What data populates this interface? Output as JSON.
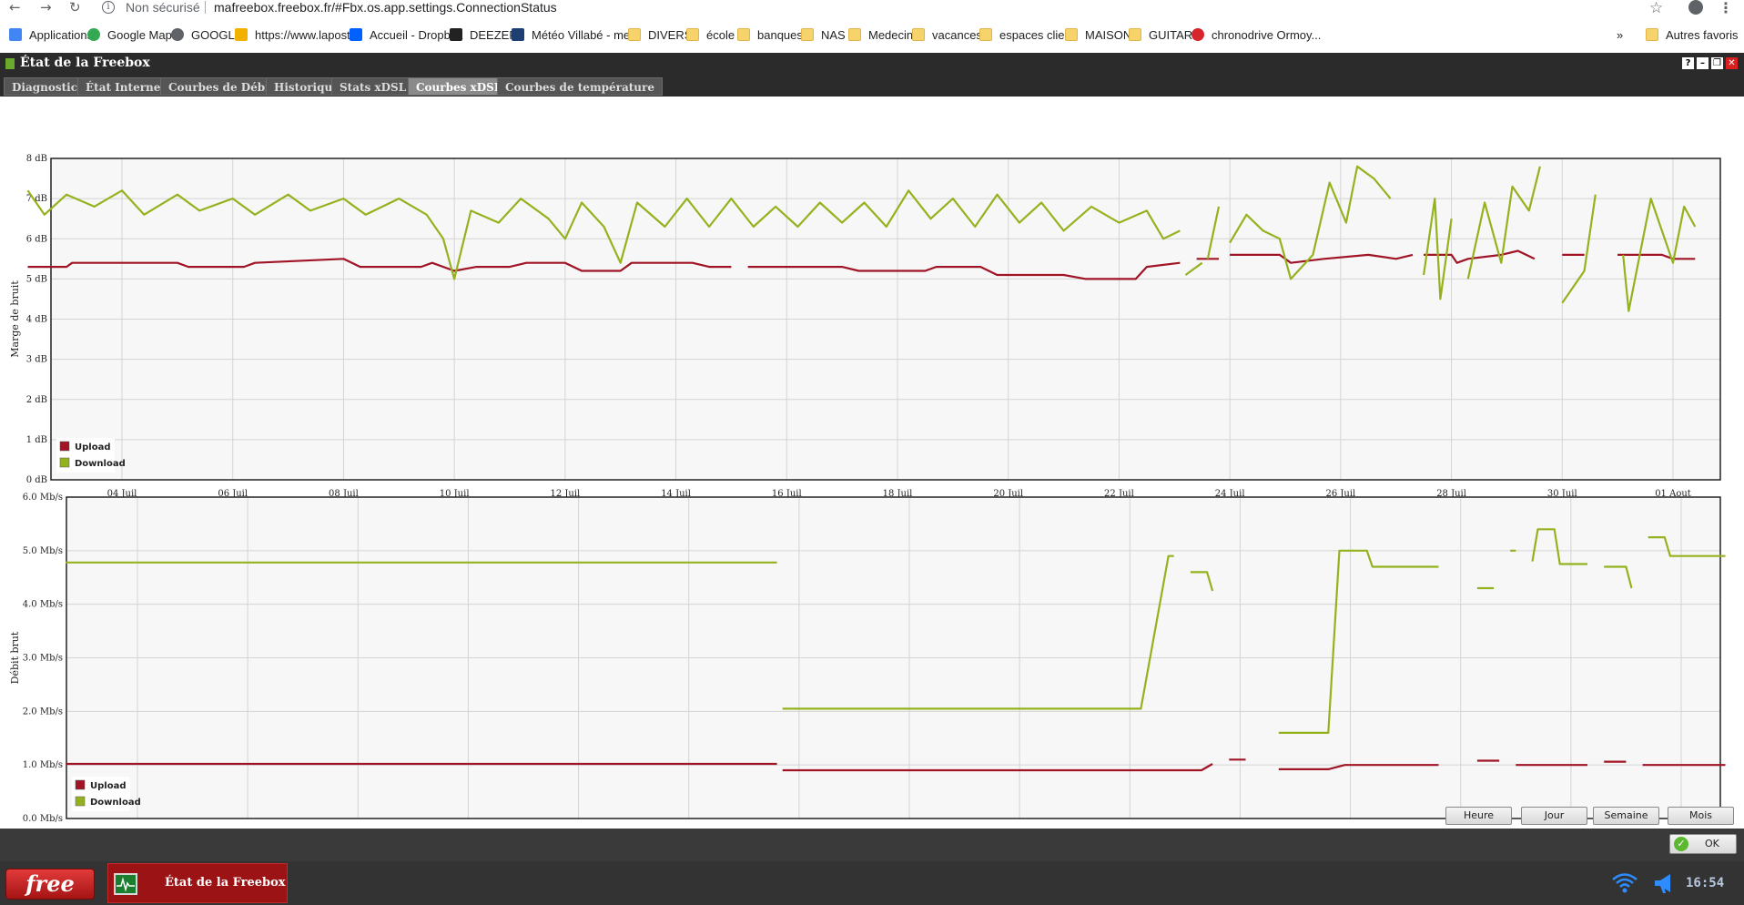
{
  "browser": {
    "security": "Non sécurisé",
    "url": "mafreebox.freebox.fr/#Fbx.os.app.settings.ConnectionStatus",
    "bookmarks": [
      {
        "label": "Applications",
        "icon": "apps-grid-icon",
        "color": "#4285f4"
      },
      {
        "label": "Google Maps",
        "icon": "maps-pin-icon",
        "color": "#34a853"
      },
      {
        "label": "GOOGLE",
        "icon": "globe-icon",
        "color": "#5f6368"
      },
      {
        "label": "https://www.lapost...",
        "icon": "mail-icon",
        "color": "#f2b100"
      },
      {
        "label": "Accueil - Dropbox",
        "icon": "dropbox-icon",
        "color": "#0061ff"
      },
      {
        "label": "DEEZER",
        "icon": "deezer-icon",
        "color": "#222222"
      },
      {
        "label": "Météo Villabé - me...",
        "icon": "meteo-icon",
        "color": "#1d3f72"
      },
      {
        "label": "DIVERS",
        "icon": "folder-icon"
      },
      {
        "label": "école",
        "icon": "folder-icon"
      },
      {
        "label": "banques",
        "icon": "folder-icon"
      },
      {
        "label": "NAS",
        "icon": "folder-icon"
      },
      {
        "label": "Medecin",
        "icon": "folder-icon"
      },
      {
        "label": "vacances",
        "icon": "folder-icon"
      },
      {
        "label": "espaces client",
        "icon": "folder-icon"
      },
      {
        "label": "MAISON",
        "icon": "folder-icon"
      },
      {
        "label": "GUITARE",
        "icon": "folder-icon"
      },
      {
        "label": "chronodrive Ormoy...",
        "icon": "chronodrive-icon",
        "color": "#d7262b"
      }
    ],
    "more_glyph": "»",
    "other_favorites": "Autres favoris"
  },
  "window": {
    "title": "État de la Freebox",
    "tabs": [
      {
        "label": "Diagnostic",
        "active": false
      },
      {
        "label": "État Internet",
        "active": false
      },
      {
        "label": "Courbes de Débit",
        "active": false
      },
      {
        "label": "Historique",
        "active": false
      },
      {
        "label": "Stats xDSL",
        "active": false
      },
      {
        "label": "Courbes xDSL",
        "active": true
      },
      {
        "label": "Courbes de température",
        "active": false
      }
    ],
    "range_buttons": [
      "Heure",
      "Jour",
      "Semaine",
      "Mois"
    ],
    "ok_label": "OK"
  },
  "taskbar": {
    "logo": "free",
    "app_label": "État de la Freebox",
    "clock": "16:54"
  },
  "colors": {
    "upload": "#a01425",
    "download": "#94b21e"
  },
  "chart_data": [
    {
      "type": "line",
      "ylabel": "Marge de bruit",
      "yticks": [
        "0 dB",
        "1 dB",
        "2 dB",
        "3 dB",
        "4 dB",
        "5 dB",
        "6 dB",
        "7 dB",
        "8 dB"
      ],
      "ylim": [
        0,
        8
      ],
      "xticks": [
        "04 Juil",
        "06 Juil",
        "08 Juil",
        "10 Juil",
        "12 Juil",
        "14 Juil",
        "16 Juil",
        "18 Juil",
        "20 Juil",
        "22 Juil",
        "24 Juil",
        "26 Juil",
        "28 Juil",
        "30 Juil",
        "01 Aout"
      ],
      "xlim": [
        2.3,
        32.7
      ],
      "legend": [
        "Upload",
        "Download"
      ],
      "legend_position": "bottom-left",
      "series": [
        {
          "name": "Upload",
          "segments": [
            [
              [
                2.3,
                5.3
              ],
              [
                3.0,
                5.3
              ],
              [
                3.1,
                5.4
              ],
              [
                5.0,
                5.4
              ],
              [
                5.2,
                5.3
              ],
              [
                6.2,
                5.3
              ],
              [
                6.4,
                5.4
              ],
              [
                8.0,
                5.5
              ],
              [
                8.3,
                5.3
              ],
              [
                9.4,
                5.3
              ],
              [
                9.6,
                5.4
              ],
              [
                10.0,
                5.2
              ],
              [
                10.4,
                5.3
              ],
              [
                11.0,
                5.3
              ],
              [
                11.3,
                5.4
              ],
              [
                12.0,
                5.4
              ],
              [
                12.3,
                5.2
              ],
              [
                13.0,
                5.2
              ],
              [
                13.2,
                5.4
              ],
              [
                14.3,
                5.4
              ],
              [
                14.6,
                5.3
              ],
              [
                15.0,
                5.3
              ]
            ],
            [
              [
                15.3,
                5.3
              ],
              [
                17.0,
                5.3
              ],
              [
                17.3,
                5.2
              ],
              [
                18.5,
                5.2
              ],
              [
                18.7,
                5.3
              ],
              [
                19.5,
                5.3
              ],
              [
                19.8,
                5.1
              ],
              [
                21.0,
                5.1
              ],
              [
                21.4,
                5.0
              ],
              [
                22.3,
                5.0
              ],
              [
                22.5,
                5.3
              ],
              [
                23.1,
                5.4
              ]
            ],
            [
              [
                23.4,
                5.5
              ],
              [
                23.8,
                5.5
              ]
            ],
            [
              [
                24.0,
                5.6
              ],
              [
                24.9,
                5.6
              ],
              [
                25.1,
                5.4
              ],
              [
                25.7,
                5.5
              ],
              [
                26.5,
                5.6
              ],
              [
                27.0,
                5.5
              ],
              [
                27.3,
                5.6
              ]
            ],
            [
              [
                27.5,
                5.6
              ],
              [
                28.0,
                5.6
              ],
              [
                28.1,
                5.4
              ],
              [
                28.3,
                5.5
              ],
              [
                28.9,
                5.6
              ],
              [
                29.2,
                5.7
              ],
              [
                29.5,
                5.5
              ]
            ],
            [
              [
                30.0,
                5.6
              ],
              [
                30.4,
                5.6
              ]
            ],
            [
              [
                31.0,
                5.6
              ],
              [
                31.8,
                5.6
              ],
              [
                32.0,
                5.5
              ],
              [
                32.4,
                5.5
              ]
            ]
          ]
        },
        {
          "name": "Download",
          "segments": [
            [
              [
                2.3,
                7.2
              ],
              [
                2.6,
                6.6
              ],
              [
                3.0,
                7.1
              ],
              [
                3.5,
                6.8
              ],
              [
                4.0,
                7.2
              ],
              [
                4.4,
                6.6
              ],
              [
                5.0,
                7.1
              ],
              [
                5.4,
                6.7
              ],
              [
                6.0,
                7.0
              ],
              [
                6.4,
                6.6
              ],
              [
                7.0,
                7.1
              ],
              [
                7.4,
                6.7
              ],
              [
                8.0,
                7.0
              ],
              [
                8.4,
                6.6
              ],
              [
                9.0,
                7.0
              ],
              [
                9.5,
                6.6
              ],
              [
                9.8,
                6.0
              ],
              [
                10.0,
                5.0
              ],
              [
                10.3,
                6.7
              ],
              [
                10.8,
                6.4
              ],
              [
                11.2,
                7.0
              ],
              [
                11.7,
                6.5
              ],
              [
                12.0,
                6.0
              ],
              [
                12.3,
                6.9
              ],
              [
                12.7,
                6.3
              ],
              [
                13.0,
                5.4
              ],
              [
                13.3,
                6.9
              ],
              [
                13.8,
                6.3
              ],
              [
                14.2,
                7.0
              ],
              [
                14.6,
                6.3
              ],
              [
                15.0,
                7.0
              ],
              [
                15.4,
                6.3
              ],
              [
                15.8,
                6.8
              ],
              [
                16.2,
                6.3
              ],
              [
                16.6,
                6.9
              ],
              [
                17.0,
                6.4
              ],
              [
                17.4,
                6.9
              ],
              [
                17.8,
                6.3
              ],
              [
                18.2,
                7.2
              ],
              [
                18.6,
                6.5
              ],
              [
                19.0,
                7.0
              ],
              [
                19.4,
                6.3
              ],
              [
                19.8,
                7.1
              ],
              [
                20.2,
                6.4
              ],
              [
                20.6,
                6.9
              ],
              [
                21.0,
                6.2
              ],
              [
                21.5,
                6.8
              ],
              [
                22.0,
                6.4
              ],
              [
                22.5,
                6.7
              ],
              [
                22.8,
                6.0
              ],
              [
                23.1,
                6.2
              ]
            ],
            [
              [
                23.2,
                5.1
              ],
              [
                23.5,
                5.4
              ]
            ],
            [
              [
                23.6,
                5.5
              ],
              [
                23.8,
                6.8
              ]
            ],
            [
              [
                24.0,
                5.9
              ],
              [
                24.3,
                6.6
              ],
              [
                24.6,
                6.2
              ],
              [
                24.9,
                6.0
              ],
              [
                25.1,
                5.0
              ],
              [
                25.5,
                5.6
              ],
              [
                25.8,
                7.4
              ],
              [
                26.1,
                6.4
              ],
              [
                26.3,
                7.8
              ],
              [
                26.6,
                7.5
              ],
              [
                26.9,
                7.0
              ]
            ],
            [
              [
                27.5,
                5.1
              ],
              [
                27.7,
                7.0
              ],
              [
                27.8,
                4.5
              ],
              [
                28.0,
                6.5
              ]
            ],
            [
              [
                28.3,
                5.0
              ],
              [
                28.6,
                6.9
              ],
              [
                28.9,
                5.4
              ],
              [
                29.1,
                7.3
              ],
              [
                29.4,
                6.7
              ],
              [
                29.6,
                7.8
              ]
            ],
            [
              [
                30.0,
                4.4
              ],
              [
                30.4,
                5.2
              ],
              [
                30.6,
                7.1
              ]
            ],
            [
              [
                31.1,
                5.6
              ],
              [
                31.2,
                4.2
              ],
              [
                31.6,
                7.0
              ],
              [
                32.0,
                5.4
              ],
              [
                32.2,
                6.8
              ],
              [
                32.4,
                6.3
              ]
            ]
          ]
        }
      ]
    },
    {
      "type": "line",
      "ylabel": "Débit brut",
      "yticks": [
        "0.0 Mb/s",
        "1.0 Mb/s",
        "2.0 Mb/s",
        "3.0 Mb/s",
        "4.0 Mb/s",
        "5.0 Mb/s",
        "6.0 Mb/s"
      ],
      "ylim": [
        0,
        6
      ],
      "xticks": [
        "04 Juil",
        "06 Juil",
        "08 Juil",
        "10 Juil",
        "12 Juil",
        "14 Juil",
        "16 Juil",
        "18 Juil",
        "20 Juil",
        "22 Juil",
        "24 Juil",
        "26 Juil",
        "28 Juil",
        "30 Juil",
        "01 Aout"
      ],
      "xlim": [
        2.7,
        32.8
      ],
      "legend": [
        "Upload",
        "Download"
      ],
      "legend_position": "bottom-left",
      "series": [
        {
          "name": "Upload",
          "segments": [
            [
              [
                2.7,
                1.02
              ],
              [
                15.6,
                1.02
              ]
            ],
            [
              [
                15.7,
                0.9
              ],
              [
                23.3,
                0.9
              ],
              [
                23.5,
                1.02
              ]
            ],
            [
              [
                23.8,
                1.1
              ],
              [
                24.1,
                1.1
              ]
            ],
            [
              [
                24.7,
                0.92
              ],
              [
                25.6,
                0.92
              ],
              [
                25.9,
                1.0
              ],
              [
                27.6,
                1.0
              ]
            ],
            [
              [
                28.3,
                1.08
              ],
              [
                28.7,
                1.08
              ]
            ],
            [
              [
                29.0,
                1.0
              ],
              [
                30.3,
                1.0
              ]
            ],
            [
              [
                30.6,
                1.06
              ],
              [
                31.0,
                1.06
              ]
            ],
            [
              [
                31.3,
                1.0
              ],
              [
                32.8,
                1.0
              ]
            ]
          ]
        },
        {
          "name": "Download",
          "segments": [
            [
              [
                2.7,
                4.78
              ],
              [
                15.6,
                4.78
              ]
            ],
            [
              [
                15.7,
                2.05
              ],
              [
                22.2,
                2.05
              ],
              [
                22.7,
                4.9
              ],
              [
                22.8,
                4.9
              ]
            ],
            [
              [
                23.1,
                4.6
              ],
              [
                23.4,
                4.6
              ],
              [
                23.5,
                4.25
              ]
            ],
            [
              [
                24.7,
                1.6
              ],
              [
                25.6,
                1.6
              ],
              [
                25.8,
                5.0
              ],
              [
                26.3,
                5.0
              ],
              [
                26.4,
                4.7
              ],
              [
                27.6,
                4.7
              ]
            ],
            [
              [
                28.3,
                4.3
              ],
              [
                28.6,
                4.3
              ]
            ],
            [
              [
                28.9,
                5.0
              ],
              [
                29.0,
                5.0
              ]
            ],
            [
              [
                29.3,
                4.8
              ],
              [
                29.4,
                5.4
              ],
              [
                29.7,
                5.4
              ],
              [
                29.8,
                4.75
              ],
              [
                30.3,
                4.75
              ]
            ],
            [
              [
                30.6,
                4.7
              ],
              [
                31.0,
                4.7
              ],
              [
                31.1,
                4.3
              ]
            ],
            [
              [
                31.4,
                5.25
              ],
              [
                31.7,
                5.25
              ],
              [
                31.8,
                4.9
              ],
              [
                32.8,
                4.9
              ]
            ]
          ]
        }
      ]
    }
  ]
}
